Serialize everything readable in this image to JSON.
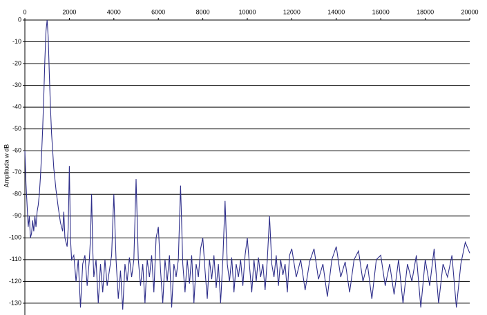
{
  "chart_data": {
    "type": "line",
    "y_label": "Amplituda w dB",
    "color": "#2e2e8a",
    "grid": true,
    "xlim": [
      0,
      20000
    ],
    "xticks": [
      0,
      2000,
      4000,
      6000,
      8000,
      10000,
      12000,
      14000,
      16000,
      18000,
      20000
    ],
    "ylim": [
      -135,
      0
    ],
    "yticks": [
      0,
      -10,
      -20,
      -30,
      -40,
      -50,
      -60,
      -70,
      -80,
      -90,
      -100,
      -110,
      -120,
      -130
    ],
    "x": [
      0,
      50,
      100,
      150,
      200,
      250,
      300,
      350,
      400,
      450,
      500,
      550,
      600,
      650,
      700,
      750,
      800,
      850,
      900,
      950,
      1000,
      1050,
      1100,
      1150,
      1200,
      1300,
      1400,
      1500,
      1600,
      1700,
      1750,
      1800,
      1900,
      1950,
      2000,
      2050,
      2100,
      2200,
      2300,
      2400,
      2500,
      2600,
      2700,
      2800,
      2900,
      2950,
      3000,
      3050,
      3100,
      3200,
      3300,
      3400,
      3500,
      3600,
      3700,
      3800,
      3900,
      4000,
      4100,
      4200,
      4300,
      4400,
      4500,
      4600,
      4700,
      4800,
      4900,
      5000,
      5100,
      5200,
      5300,
      5400,
      5500,
      5600,
      5700,
      5800,
      5900,
      6000,
      6100,
      6200,
      6300,
      6400,
      6500,
      6600,
      6700,
      6800,
      6900,
      7000,
      7100,
      7200,
      7300,
      7400,
      7500,
      7600,
      7700,
      7800,
      7900,
      8000,
      8100,
      8200,
      8300,
      8400,
      8500,
      8600,
      8700,
      8800,
      8900,
      9000,
      9100,
      9200,
      9300,
      9400,
      9500,
      9600,
      9700,
      9800,
      9900,
      10000,
      10100,
      10200,
      10300,
      10400,
      10500,
      10600,
      10700,
      10800,
      10900,
      11000,
      11100,
      11200,
      11300,
      11400,
      11500,
      11600,
      11700,
      11800,
      11900,
      12000,
      12200,
      12400,
      12600,
      12800,
      13000,
      13200,
      13400,
      13600,
      13800,
      14000,
      14200,
      14400,
      14600,
      14800,
      15000,
      15200,
      15400,
      15600,
      15800,
      16000,
      16200,
      16400,
      16600,
      16800,
      17000,
      17200,
      17400,
      17600,
      17800,
      18000,
      18200,
      18400,
      18600,
      18800,
      19000,
      19200,
      19400,
      19600,
      19800,
      20000
    ],
    "values": [
      -60,
      -75,
      -85,
      -95,
      -90,
      -100,
      -98,
      -92,
      -97,
      -90,
      -95,
      -88,
      -85,
      -80,
      -72,
      -62,
      -50,
      -35,
      -18,
      -5,
      0,
      -8,
      -25,
      -40,
      -52,
      -68,
      -78,
      -86,
      -93,
      -97,
      -88,
      -100,
      -104,
      -95,
      -67,
      -100,
      -110,
      -108,
      -120,
      -110,
      -132,
      -112,
      -108,
      -122,
      -110,
      -100,
      -80,
      -105,
      -118,
      -110,
      -130,
      -112,
      -125,
      -110,
      -122,
      -115,
      -108,
      -80,
      -110,
      -128,
      -115,
      -133,
      -112,
      -120,
      -109,
      -118,
      -110,
      -73,
      -110,
      -122,
      -112,
      -130,
      -110,
      -118,
      -108,
      -125,
      -100,
      -95,
      -115,
      -130,
      -110,
      -120,
      -108,
      -132,
      -112,
      -118,
      -110,
      -76,
      -112,
      -125,
      -110,
      -121,
      -108,
      -130,
      -112,
      -118,
      -105,
      -100,
      -115,
      -128,
      -110,
      -119,
      -108,
      -123,
      -112,
      -130,
      -110,
      -83,
      -112,
      -120,
      -109,
      -125,
      -112,
      -118,
      -110,
      -122,
      -108,
      -100,
      -113,
      -125,
      -110,
      -120,
      -109,
      -118,
      -112,
      -124,
      -110,
      -90,
      -112,
      -118,
      -108,
      -122,
      -110,
      -117,
      -112,
      -125,
      -108,
      -105,
      -118,
      -110,
      -124,
      -111,
      -105,
      -119,
      -112,
      -127,
      -110,
      -104,
      -118,
      -111,
      -125,
      -110,
      -106,
      -120,
      -112,
      -128,
      -110,
      -108,
      -122,
      -112,
      -126,
      -110,
      -130,
      -112,
      -120,
      -108,
      -132,
      -110,
      -122,
      -105,
      -130,
      -112,
      -118,
      -108,
      -132,
      -112,
      -102,
      -107
    ]
  }
}
